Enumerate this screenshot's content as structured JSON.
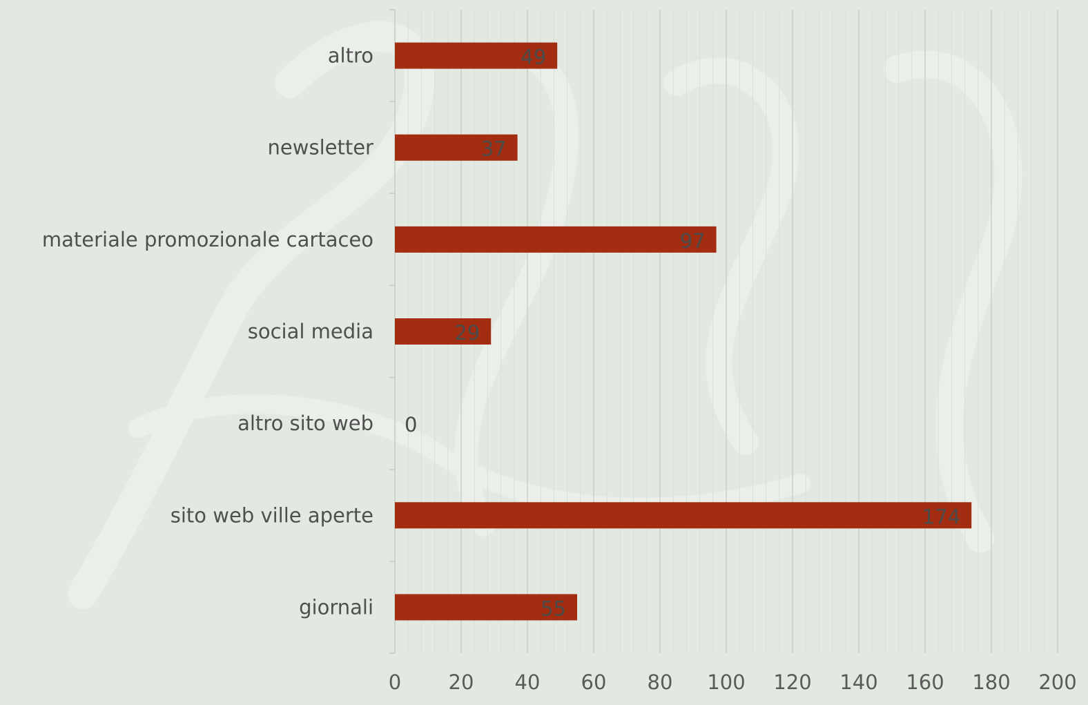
{
  "chart_data": {
    "type": "bar",
    "orientation": "horizontal",
    "categories": [
      "altro",
      "newsletter",
      "materiale promozionale cartaceo",
      "social media",
      "altro sito web",
      "sito web ville aperte",
      "giornali"
    ],
    "values": [
      49,
      37,
      97,
      29,
      0,
      174,
      55
    ],
    "value_labels": [
      "49",
      "37",
      "97",
      "29",
      "0",
      "174",
      "55"
    ],
    "xlim": [
      0,
      200
    ],
    "x_ticks": [
      0,
      20,
      40,
      60,
      80,
      100,
      120,
      140,
      160,
      180,
      200
    ],
    "x_tick_labels": [
      "0",
      "20",
      "40",
      "60",
      "80",
      "100",
      "120",
      "140",
      "160",
      "180",
      "200"
    ],
    "grid": true,
    "bar_color": "#a22d10",
    "title": "",
    "xlabel": "",
    "ylabel": ""
  }
}
